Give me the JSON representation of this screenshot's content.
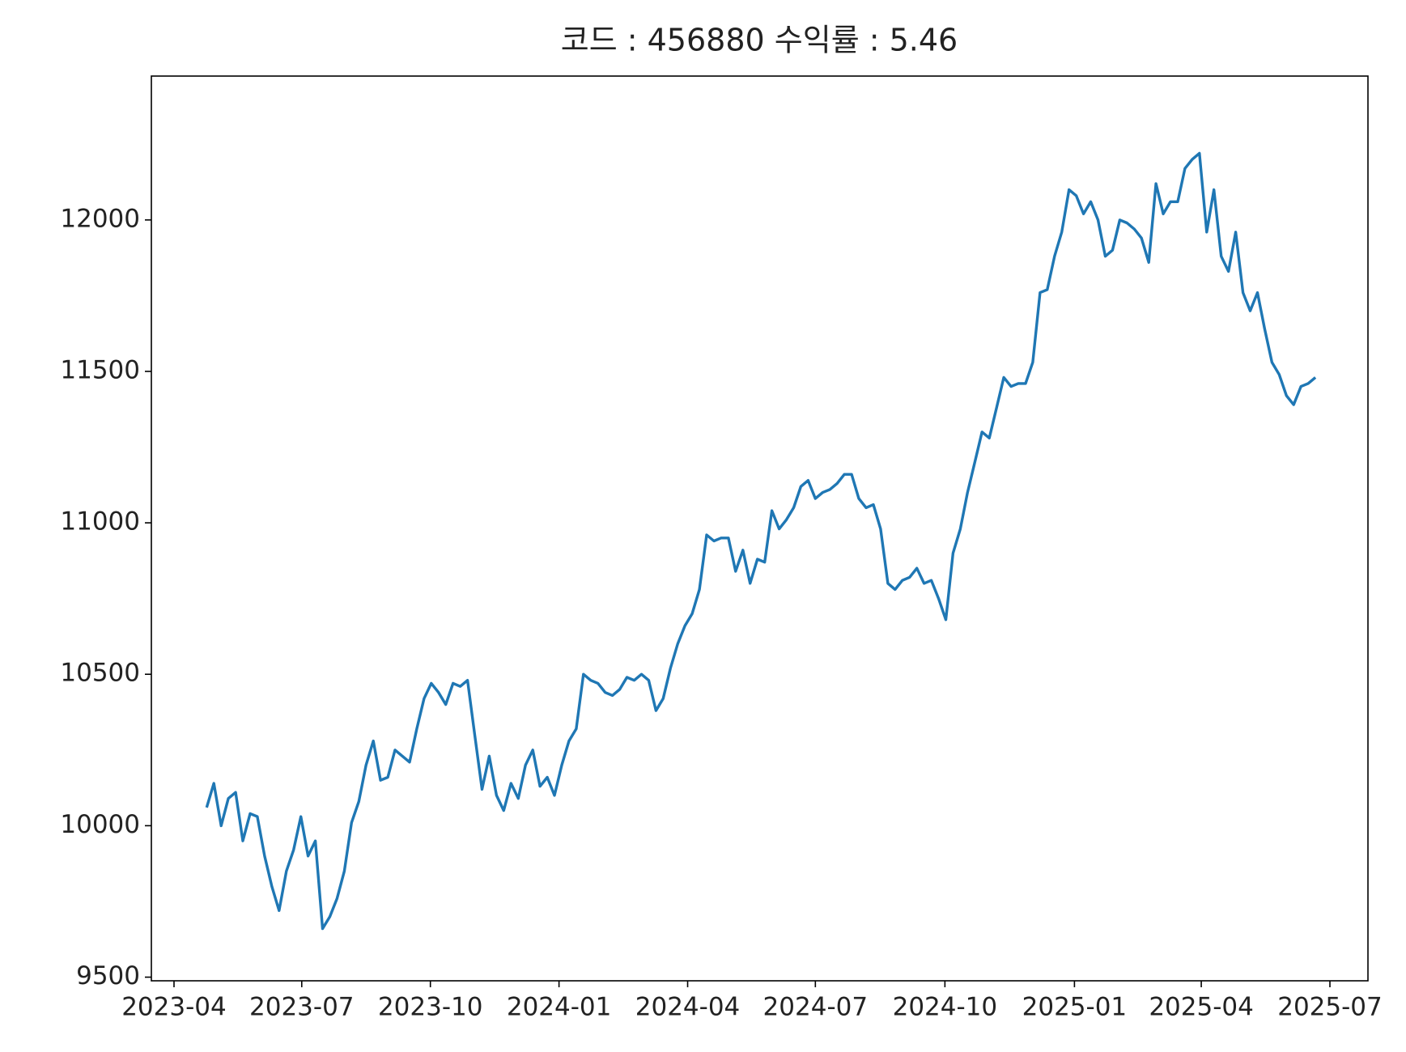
{
  "chart_data": {
    "type": "line",
    "title": "코드 : 456880 수익률 : 5.46",
    "series": [
      {
        "color": "#1f77b4",
        "values": [
          10060,
          10140,
          10000,
          10090,
          10110,
          9950,
          10040,
          10030,
          9900,
          9800,
          9720,
          9850,
          9920,
          10030,
          9900,
          9950,
          9660,
          9700,
          9760,
          9850,
          10010,
          10080,
          10200,
          10280,
          10150,
          10160,
          10250,
          10230,
          10210,
          10320,
          10420,
          10470,
          10440,
          10400,
          10470,
          10460,
          10480,
          10300,
          10120,
          10230,
          10100,
          10050,
          10140,
          10090,
          10200,
          10250,
          10130,
          10160,
          10100,
          10200,
          10280,
          10320,
          10500,
          10480,
          10470,
          10440,
          10430,
          10450,
          10490,
          10480,
          10500,
          10480,
          10380,
          10420,
          10520,
          10600,
          10660,
          10700,
          10780,
          10960,
          10940,
          10950,
          10950,
          10840,
          10910,
          10800,
          10880,
          10870,
          11040,
          10980,
          11010,
          11050,
          11120,
          11140,
          11080,
          11100,
          11110,
          11130,
          11160,
          11160,
          11080,
          11050,
          11060,
          10980,
          10800,
          10780,
          10810,
          10820,
          10850,
          10800,
          10810,
          10750,
          10680,
          10900,
          10980,
          11100,
          11200,
          11300,
          11280,
          11380,
          11480,
          11450,
          11460,
          11460,
          11530,
          11760,
          11770,
          11880,
          11960,
          12100,
          12080,
          12020,
          12060,
          12000,
          11880,
          11900,
          12000,
          11990,
          11970,
          11940,
          11860,
          12120,
          12020,
          12060,
          12060,
          12170,
          12200,
          12220,
          11960,
          12100,
          11880,
          11830,
          11960,
          11760,
          11700,
          11760,
          11640,
          11530,
          11490,
          11420,
          11390,
          11450,
          11460,
          11480
        ]
      }
    ],
    "xlim": [
      -7.625,
      160.25
    ],
    "xticks": [
      {
        "value": -4.5,
        "label": "2023-04"
      },
      {
        "value": 13.125,
        "label": "2023-07"
      },
      {
        "value": 30.875,
        "label": "2023-10"
      },
      {
        "value": 48.625,
        "label": "2024-01"
      },
      {
        "value": 66.375,
        "label": "2024-04"
      },
      {
        "value": 84,
        "label": "2024-07"
      },
      {
        "value": 101.875,
        "label": "2024-10"
      },
      {
        "value": 119.75,
        "label": "2025-01"
      },
      {
        "value": 137.25,
        "label": "2025-04"
      },
      {
        "value": 155,
        "label": "2025-07"
      }
    ],
    "ylim": [
      9488,
      12475
    ],
    "yticks": [
      9500,
      10000,
      10500,
      11000,
      11500,
      12000
    ]
  }
}
